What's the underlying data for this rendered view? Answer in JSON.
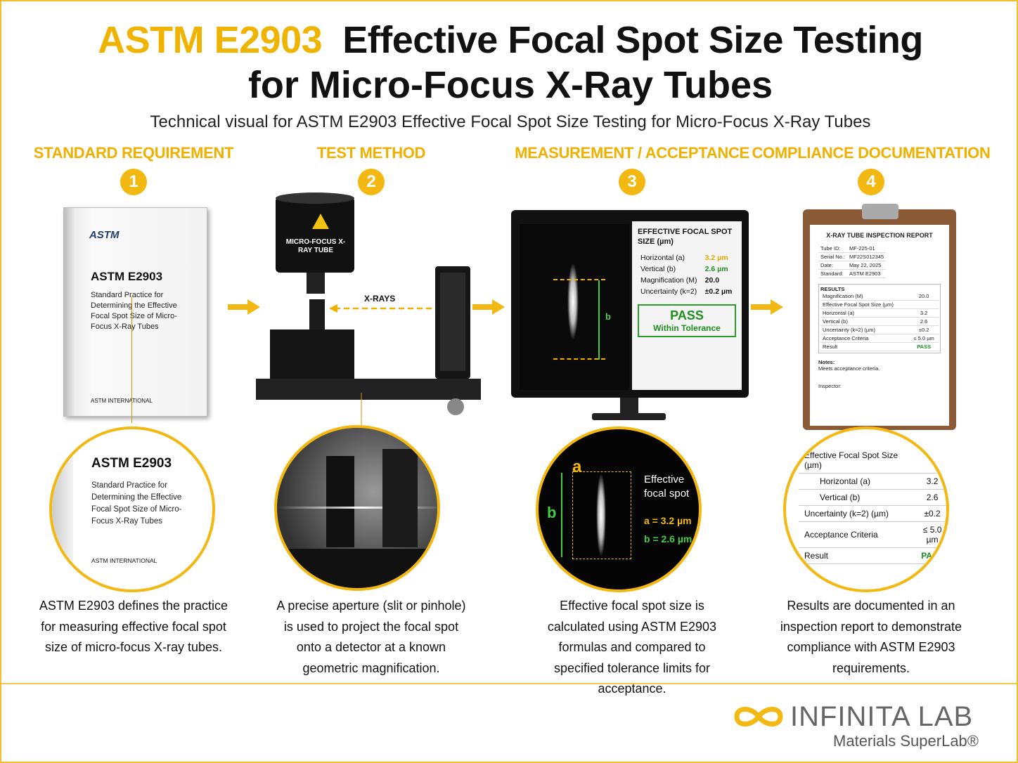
{
  "header": {
    "title_highlight": "ASTM E2903",
    "title_rest": "Effective Focal Spot Size Testing",
    "title_line2": "for Micro-Focus X-Ray Tubes",
    "subtitle": "Technical visual for ASTM E2903 Effective Focal Spot Size Testing for Micro-Focus X-Ray Tubes"
  },
  "steps": [
    {
      "heading": "STANDARD REQUIREMENT",
      "number": "1",
      "description": "ASTM E2903 defines the practice for measuring effective focal spot size of micro-focus X-ray tubes."
    },
    {
      "heading": "TEST METHOD",
      "number": "2",
      "description": "A precise aperture (slit or pinhole) is used to project the focal spot onto a detector at a known geometric magnification."
    },
    {
      "heading": "MEASUREMENT / ACCEPTANCE",
      "number": "3",
      "description": "Effective focal spot size is calculated using ASTM E2903 formulas and compared to specified tolerance limits for acceptance."
    },
    {
      "heading": "COMPLIANCE DOCUMENTATION",
      "number": "4",
      "description": "Results are documented in an inspection report to demonstrate compliance with ASTM E2903 requirements."
    }
  ],
  "book": {
    "logo": "ASTM",
    "code": "ASTM E2903",
    "title": "Standard Practice for Determining the Effective Focal Spot Size of Micro-Focus X-Ray Tubes",
    "publisher": "ASTM INTERNATIONAL"
  },
  "setup": {
    "tube_label": "MICRO-FOCUS X-RAY TUBE",
    "beam_label": "X-RAYS"
  },
  "monitor": {
    "panel_title": "EFFECTIVE FOCAL SPOT SIZE (µm)",
    "rows": [
      {
        "label": "Horizontal (a)",
        "value": "3.2 µm"
      },
      {
        "label": "Vertical (b)",
        "value": "2.6 µm"
      },
      {
        "label": "Magnification (M)",
        "value": "20.0"
      },
      {
        "label": "Uncertainty (k=2)",
        "value": "±0.2 µm"
      }
    ],
    "result": "PASS",
    "result_note": "Within Tolerance",
    "axis_label": "b"
  },
  "zoom_measure": {
    "a": "a",
    "b": "b",
    "label": "Effective focal spot",
    "a_value": "a = 3.2 µm",
    "b_value": "b = 2.6 µm"
  },
  "report": {
    "title": "X-RAY TUBE INSPECTION REPORT",
    "fields": [
      {
        "label": "Tube ID:",
        "value": "MF-225-01"
      },
      {
        "label": "Serial No.:",
        "value": "MF22S012345"
      },
      {
        "label": "Date:",
        "value": "May 22, 2025"
      },
      {
        "label": "Standard:",
        "value": "ASTM E2903"
      }
    ],
    "results_heading": "RESULTS",
    "results": [
      {
        "label": "Magnification (M)",
        "value": "20.0"
      },
      {
        "label": "Effective Focal Spot Size (µm)"
      },
      {
        "label": "Horizontal (a)",
        "value": "3.2"
      },
      {
        "label": "Vertical (b)",
        "value": "2.6"
      },
      {
        "label": "Uncertainty (k=2) (µm)",
        "value": "±0.2"
      },
      {
        "label": "Acceptance Criteria",
        "value": "≤ 5.0 µm"
      },
      {
        "label": "Result",
        "value": "PASS"
      }
    ],
    "notes_label": "Notes:",
    "notes": "Meets acceptance criteria.",
    "inspector": "Inspector:"
  },
  "footer": {
    "logo": "INFINITA LAB",
    "tagline": "Materials SuperLab®"
  }
}
